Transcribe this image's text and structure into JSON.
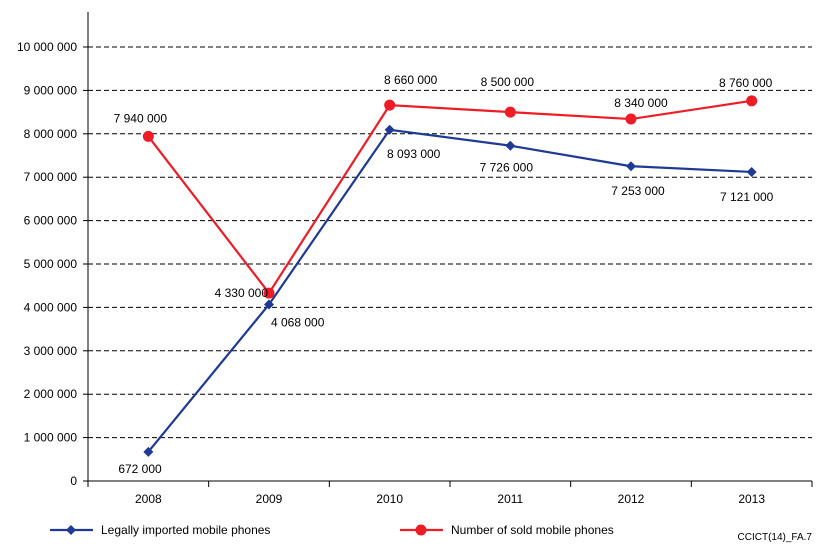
{
  "chart_data": {
    "type": "line",
    "title": "",
    "xlabel": "",
    "ylabel": "",
    "categories": [
      "2008",
      "2009",
      "2010",
      "2011",
      "2012",
      "2013"
    ],
    "ylim": [
      0,
      10000000
    ],
    "yticks": [
      0,
      1000000,
      2000000,
      3000000,
      4000000,
      5000000,
      6000000,
      7000000,
      8000000,
      9000000,
      10000000
    ],
    "ytick_labels": [
      "0",
      "1 000 000",
      "2 000 000",
      "3 000 000",
      "4 000 000",
      "5 000 000",
      "6 000 000",
      "7 000 000",
      "8 000 000",
      "9 000 000",
      "10 000 000"
    ],
    "grid": "horizontal dashed",
    "legend_position": "bottom",
    "series": [
      {
        "name": "Legally imported mobile phones",
        "color": "#1F3A93",
        "marker": "diamond",
        "values": [
          672000,
          4068000,
          8093000,
          7726000,
          7253000,
          7121000
        ],
        "labels": [
          "672 000",
          "4 068 000",
          "8 093 000",
          "7 726 000",
          "7 253 000",
          "7 121 000"
        ]
      },
      {
        "name": "Number of sold mobile phones",
        "color": "#EE1C25",
        "marker": "circle",
        "values": [
          7940000,
          4330000,
          8660000,
          8500000,
          8340000,
          8760000
        ],
        "labels": [
          "7 940 000",
          "4 330 000",
          "8 660 000",
          "8 500 000",
          "8 340 000",
          "8 760 000"
        ]
      }
    ],
    "source_note": "CCICT(14)_FA.7"
  }
}
